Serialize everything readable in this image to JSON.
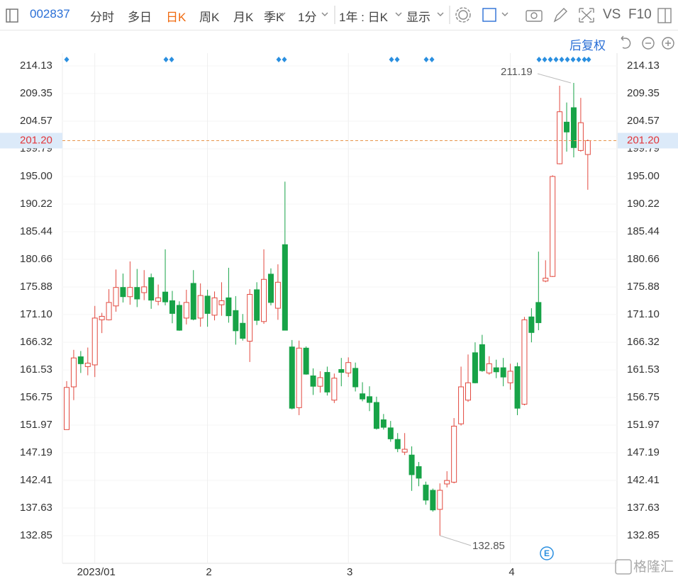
{
  "toolbar": {
    "code": "002837",
    "items": [
      "分时",
      "多日",
      "日K",
      "周K",
      "月K",
      "季K",
      "1分"
    ],
    "range": "1年 : 日K",
    "display": "显示",
    "vs": "VS",
    "f10": "F10",
    "adjust": "后复权"
  },
  "watermark": "格隆汇",
  "event_icon": "E",
  "chart_data": {
    "type": "candlestick",
    "categories": [
      null,
      null,
      null,
      null,
      "2023/01",
      null,
      null,
      null,
      null,
      null,
      null,
      null,
      null,
      null,
      null,
      null,
      null,
      null,
      null,
      null,
      "2",
      null,
      null,
      null,
      null,
      null,
      null,
      null,
      null,
      null,
      null,
      null,
      null,
      null,
      null,
      null,
      null,
      null,
      null,
      null,
      "3",
      null,
      null,
      null,
      null,
      null,
      null,
      null,
      null,
      null,
      null,
      null,
      null,
      null,
      null,
      null,
      null,
      null,
      null,
      null,
      null,
      null,
      null,
      "4",
      null,
      null,
      null,
      null,
      null,
      null,
      null,
      null,
      null,
      null,
      null
    ],
    "open": [
      151.2,
      158.6,
      163.8,
      162.1,
      162.4,
      170.2,
      170.2,
      172.6,
      175.8,
      174.2,
      175.8,
      174.9,
      177.5,
      173.4,
      175.0,
      173.5,
      172.7,
      170.5,
      176.5,
      170.5,
      174.3,
      171.0,
      172.8,
      174.0,
      171.8,
      169.6,
      166.5,
      175.4,
      169.9,
      178.1,
      172.2,
      183.2,
      165.5,
      155.0,
      165.3,
      160.5,
      158.7,
      161.1,
      156.3,
      161.6,
      161.0,
      161.8,
      157.4,
      156.9,
      155.9,
      152.9,
      151.5,
      149.5,
      147.3,
      146.8,
      144.8,
      141.6,
      140.7,
      137.4,
      141.8,
      142.1,
      152.2,
      156.3,
      164.5,
      165.9,
      161.0,
      161.9,
      161.9,
      159.3,
      162.1,
      155.6,
      170.7,
      173.2,
      176.9,
      177.7,
      197.2,
      204.4,
      206.9,
      199.5,
      198.8
    ],
    "high": [
      159.6,
      165.0,
      164.8,
      165.4,
      172.6,
      171.4,
      175.5,
      178.9,
      178.2,
      180.3,
      179.0,
      178.8,
      178.2,
      176.3,
      182.4,
      175.2,
      173.4,
      175.4,
      178.8,
      176.5,
      175.4,
      175.1,
      176.7,
      179.2,
      174.3,
      171.2,
      175.5,
      176.7,
      182.4,
      179.1,
      179.8,
      194.1,
      166.7,
      166.6,
      165.6,
      161.8,
      161.3,
      162.1,
      160.9,
      163.6,
      163.7,
      162.8,
      159.4,
      158.7,
      156.9,
      153.9,
      152.7,
      150.6,
      150.6,
      148.3,
      145.6,
      142.2,
      141.0,
      141.9,
      144.0,
      153.2,
      162.1,
      164.2,
      166.3,
      167.6,
      163.9,
      163.3,
      163.6,
      162.6,
      162.8,
      170.7,
      172.2,
      182.0,
      180.5,
      195.2,
      210.7,
      207.8,
      211.19,
      208.6,
      201.4
    ],
    "low": [
      151.2,
      156.3,
      161.0,
      160.6,
      160.3,
      167.9,
      170.1,
      171.6,
      173.2,
      172.8,
      172.4,
      173.6,
      172.1,
      172.7,
      172.7,
      169.6,
      168.3,
      169.4,
      170.1,
      169.0,
      169.0,
      170.1,
      170.9,
      169.7,
      165.9,
      166.6,
      162.9,
      169.3,
      169.5,
      172.7,
      170.2,
      168.4,
      154.7,
      153.7,
      160.7,
      157.2,
      157.6,
      157.1,
      155.8,
      158.7,
      160.3,
      157.8,
      156.1,
      154.4,
      151.2,
      151.2,
      149.1,
      147.3,
      146.8,
      140.6,
      141.4,
      138.2,
      137.0,
      132.85,
      141.2,
      141.9,
      151.9,
      156.0,
      159.2,
      161.2,
      160.7,
      160.1,
      158.7,
      158.1,
      153.7,
      155.4,
      166.3,
      168.4,
      176.7,
      177.6,
      197.1,
      199.3,
      198.3,
      199.3,
      192.7
    ],
    "close": [
      158.5,
      163.6,
      162.6,
      162.7,
      170.5,
      170.8,
      173.2,
      175.8,
      174.2,
      175.8,
      173.8,
      175.9,
      173.6,
      174.0,
      173.3,
      171.3,
      168.4,
      173.2,
      170.3,
      174.4,
      171.3,
      174.0,
      173.5,
      170.9,
      168.3,
      167.0,
      174.6,
      170.1,
      177.2,
      173.2,
      176.7,
      168.4,
      154.9,
      165.3,
      160.8,
      158.7,
      160.2,
      157.7,
      160.1,
      161.1,
      162.8,
      158.6,
      156.5,
      155.9,
      151.4,
      151.6,
      149.6,
      147.9,
      147.8,
      143.4,
      142.8,
      139.0,
      137.3,
      140.7,
      142.4,
      151.8,
      158.6,
      159.3,
      159.3,
      161.4,
      162.6,
      161.2,
      160.3,
      161.3,
      154.9,
      170.2,
      168.0,
      169.7,
      177.4,
      195.0,
      206.2,
      202.7,
      200.0,
      204.3,
      201.2
    ],
    "up_color": "#e2493f",
    "down_color": "#17a347",
    "current": {
      "value": 201.2,
      "label": "201.20"
    },
    "ylim": [
      128.07,
      216.34
    ],
    "yticks": [
      214.13,
      209.35,
      204.57,
      199.79,
      {
        "value": 195,
        "label": "195.00"
      },
      190.22,
      185.44,
      180.66,
      175.88,
      {
        "value": 171.1,
        "label": "171.10"
      },
      166.32,
      161.53,
      156.75,
      151.97,
      147.19,
      142.41,
      137.63,
      132.85
    ]
  }
}
